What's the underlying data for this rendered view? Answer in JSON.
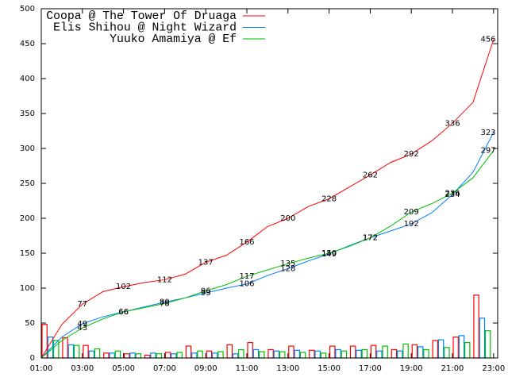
{
  "chart_data": {
    "type": "line",
    "x": [
      1,
      2,
      3,
      4,
      5,
      6,
      7,
      8,
      9,
      10,
      11,
      12,
      13,
      14,
      15,
      16,
      17,
      18,
      19,
      20,
      21,
      22,
      23
    ],
    "bar_x": [
      1,
      2,
      3,
      4,
      5,
      6,
      7,
      8,
      9,
      10,
      11,
      12,
      13,
      14,
      15,
      16,
      17,
      18,
      19,
      20,
      21,
      22
    ],
    "xlim": [
      1,
      23.2
    ],
    "xticks": [
      {
        "value": 1,
        "label": "01:00"
      },
      {
        "value": 3,
        "label": "03:00"
      },
      {
        "value": 5,
        "label": "05:00"
      },
      {
        "value": 7,
        "label": "07:00"
      },
      {
        "value": 9,
        "label": "09:00"
      },
      {
        "value": 11,
        "label": "11:00"
      },
      {
        "value": 13,
        "label": "13:00"
      },
      {
        "value": 15,
        "label": "15:00"
      },
      {
        "value": 17,
        "label": "17:00"
      },
      {
        "value": 19,
        "label": "19:00"
      },
      {
        "value": 21,
        "label": "21:00"
      },
      {
        "value": 23,
        "label": "23:00"
      }
    ],
    "ylim": [
      0,
      500
    ],
    "yticks": [
      0,
      50,
      100,
      150,
      200,
      250,
      300,
      350,
      400,
      450,
      500
    ],
    "grid": false,
    "legend": "top-left",
    "series": [
      {
        "name": "Coopa @ The Tower Of Druaga",
        "color": "#ff0000",
        "values": [
          0,
          48,
          77,
          95,
          102,
          108,
          112,
          120,
          137,
          147,
          166,
          188,
          200,
          217,
          228,
          245,
          262,
          280,
          292,
          311,
          336,
          366,
          456
        ],
        "value_labels": [
          null,
          null,
          "77",
          null,
          "102",
          null,
          "112",
          null,
          "137",
          null,
          "166",
          null,
          "200",
          null,
          "228",
          null,
          "262",
          null,
          "292",
          null,
          "336",
          null,
          "456"
        ],
        "bars": [
          48,
          29,
          18,
          7,
          6,
          4,
          8,
          17,
          10,
          19,
          22,
          12,
          17,
          11,
          17,
          17,
          18,
          12,
          19,
          25,
          30,
          90
        ]
      },
      {
        "name": "Elis Shihou @ Night Wizard",
        "color": "#0080ff",
        "values": [
          0,
          30,
          49,
          59,
          66,
          73,
          80,
          86,
          93,
          100,
          106,
          118,
          128,
          139,
          149,
          161,
          172,
          182,
          192,
          208,
          234,
          266,
          323
        ],
        "value_labels": [
          null,
          null,
          "49",
          null,
          "66",
          null,
          "80",
          null,
          "93",
          null,
          "106",
          null,
          "128",
          null,
          "149",
          null,
          "172",
          null,
          "192",
          null,
          "234",
          null,
          "323"
        ],
        "bars": [
          30,
          19,
          10,
          7,
          7,
          7,
          6,
          7,
          7,
          6,
          12,
          10,
          11,
          10,
          12,
          11,
          10,
          10,
          16,
          26,
          32,
          57
        ]
      },
      {
        "name": "Yuuko Amamiya @ Ef",
        "color": "#00c000",
        "values": [
          0,
          25,
          43,
          56,
          66,
          72,
          78,
          86,
          96,
          105,
          117,
          126,
          135,
          143,
          150,
          160,
          172,
          189,
          209,
          221,
          236,
          258,
          297
        ],
        "value_labels": [
          null,
          null,
          "43",
          null,
          "66",
          null,
          "78",
          null,
          "96",
          null,
          "117",
          null,
          "135",
          null,
          "150",
          null,
          "172",
          null,
          "209",
          null,
          "236",
          null,
          "297"
        ],
        "bars": [
          25,
          18,
          13,
          10,
          6,
          6,
          8,
          10,
          9,
          12,
          9,
          9,
          8,
          7,
          10,
          12,
          17,
          20,
          12,
          15,
          22,
          39
        ]
      }
    ]
  }
}
